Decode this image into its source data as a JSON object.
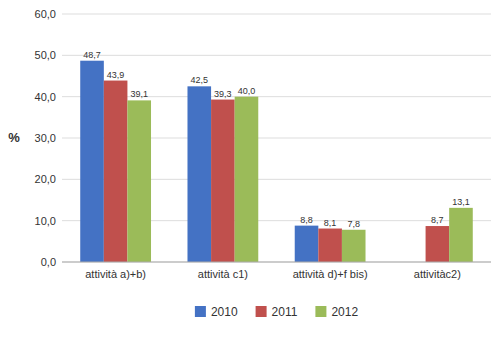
{
  "chart_data": {
    "type": "bar",
    "ylabel": "%",
    "categories": [
      "attività a)+b)",
      "attività c1)",
      "attività d)+f bis)",
      "attivitàc2)"
    ],
    "series": [
      {
        "name": "2010",
        "color": "#4472C4",
        "values": [
          48.7,
          42.5,
          8.8,
          0.0
        ],
        "value_labels": [
          "48,7",
          "42,5",
          "8,8",
          null
        ]
      },
      {
        "name": "2011",
        "color": "#C0504D",
        "values": [
          43.9,
          39.3,
          8.1,
          8.7
        ],
        "value_labels": [
          "43,9",
          "39,3",
          "8,1",
          "8,7"
        ]
      },
      {
        "name": "2012",
        "color": "#9BBB59",
        "values": [
          39.1,
          40.0,
          7.8,
          13.1
        ],
        "value_labels": [
          "39,1",
          "40,0",
          "7,8",
          "13,1"
        ]
      }
    ],
    "ylim": [
      0,
      60
    ],
    "yticks": [
      {
        "value": 0.0,
        "label": "0,0"
      },
      {
        "value": 10.0,
        "label": "10,0"
      },
      {
        "value": 20.0,
        "label": "20,0"
      },
      {
        "value": 30.0,
        "label": "30,0"
      },
      {
        "value": 40.0,
        "label": "40,0"
      },
      {
        "value": 50.0,
        "label": "50,0"
      },
      {
        "value": 60.0,
        "label": "60,0"
      }
    ],
    "grid": true,
    "legend": "bottom",
    "data_labels": true
  }
}
